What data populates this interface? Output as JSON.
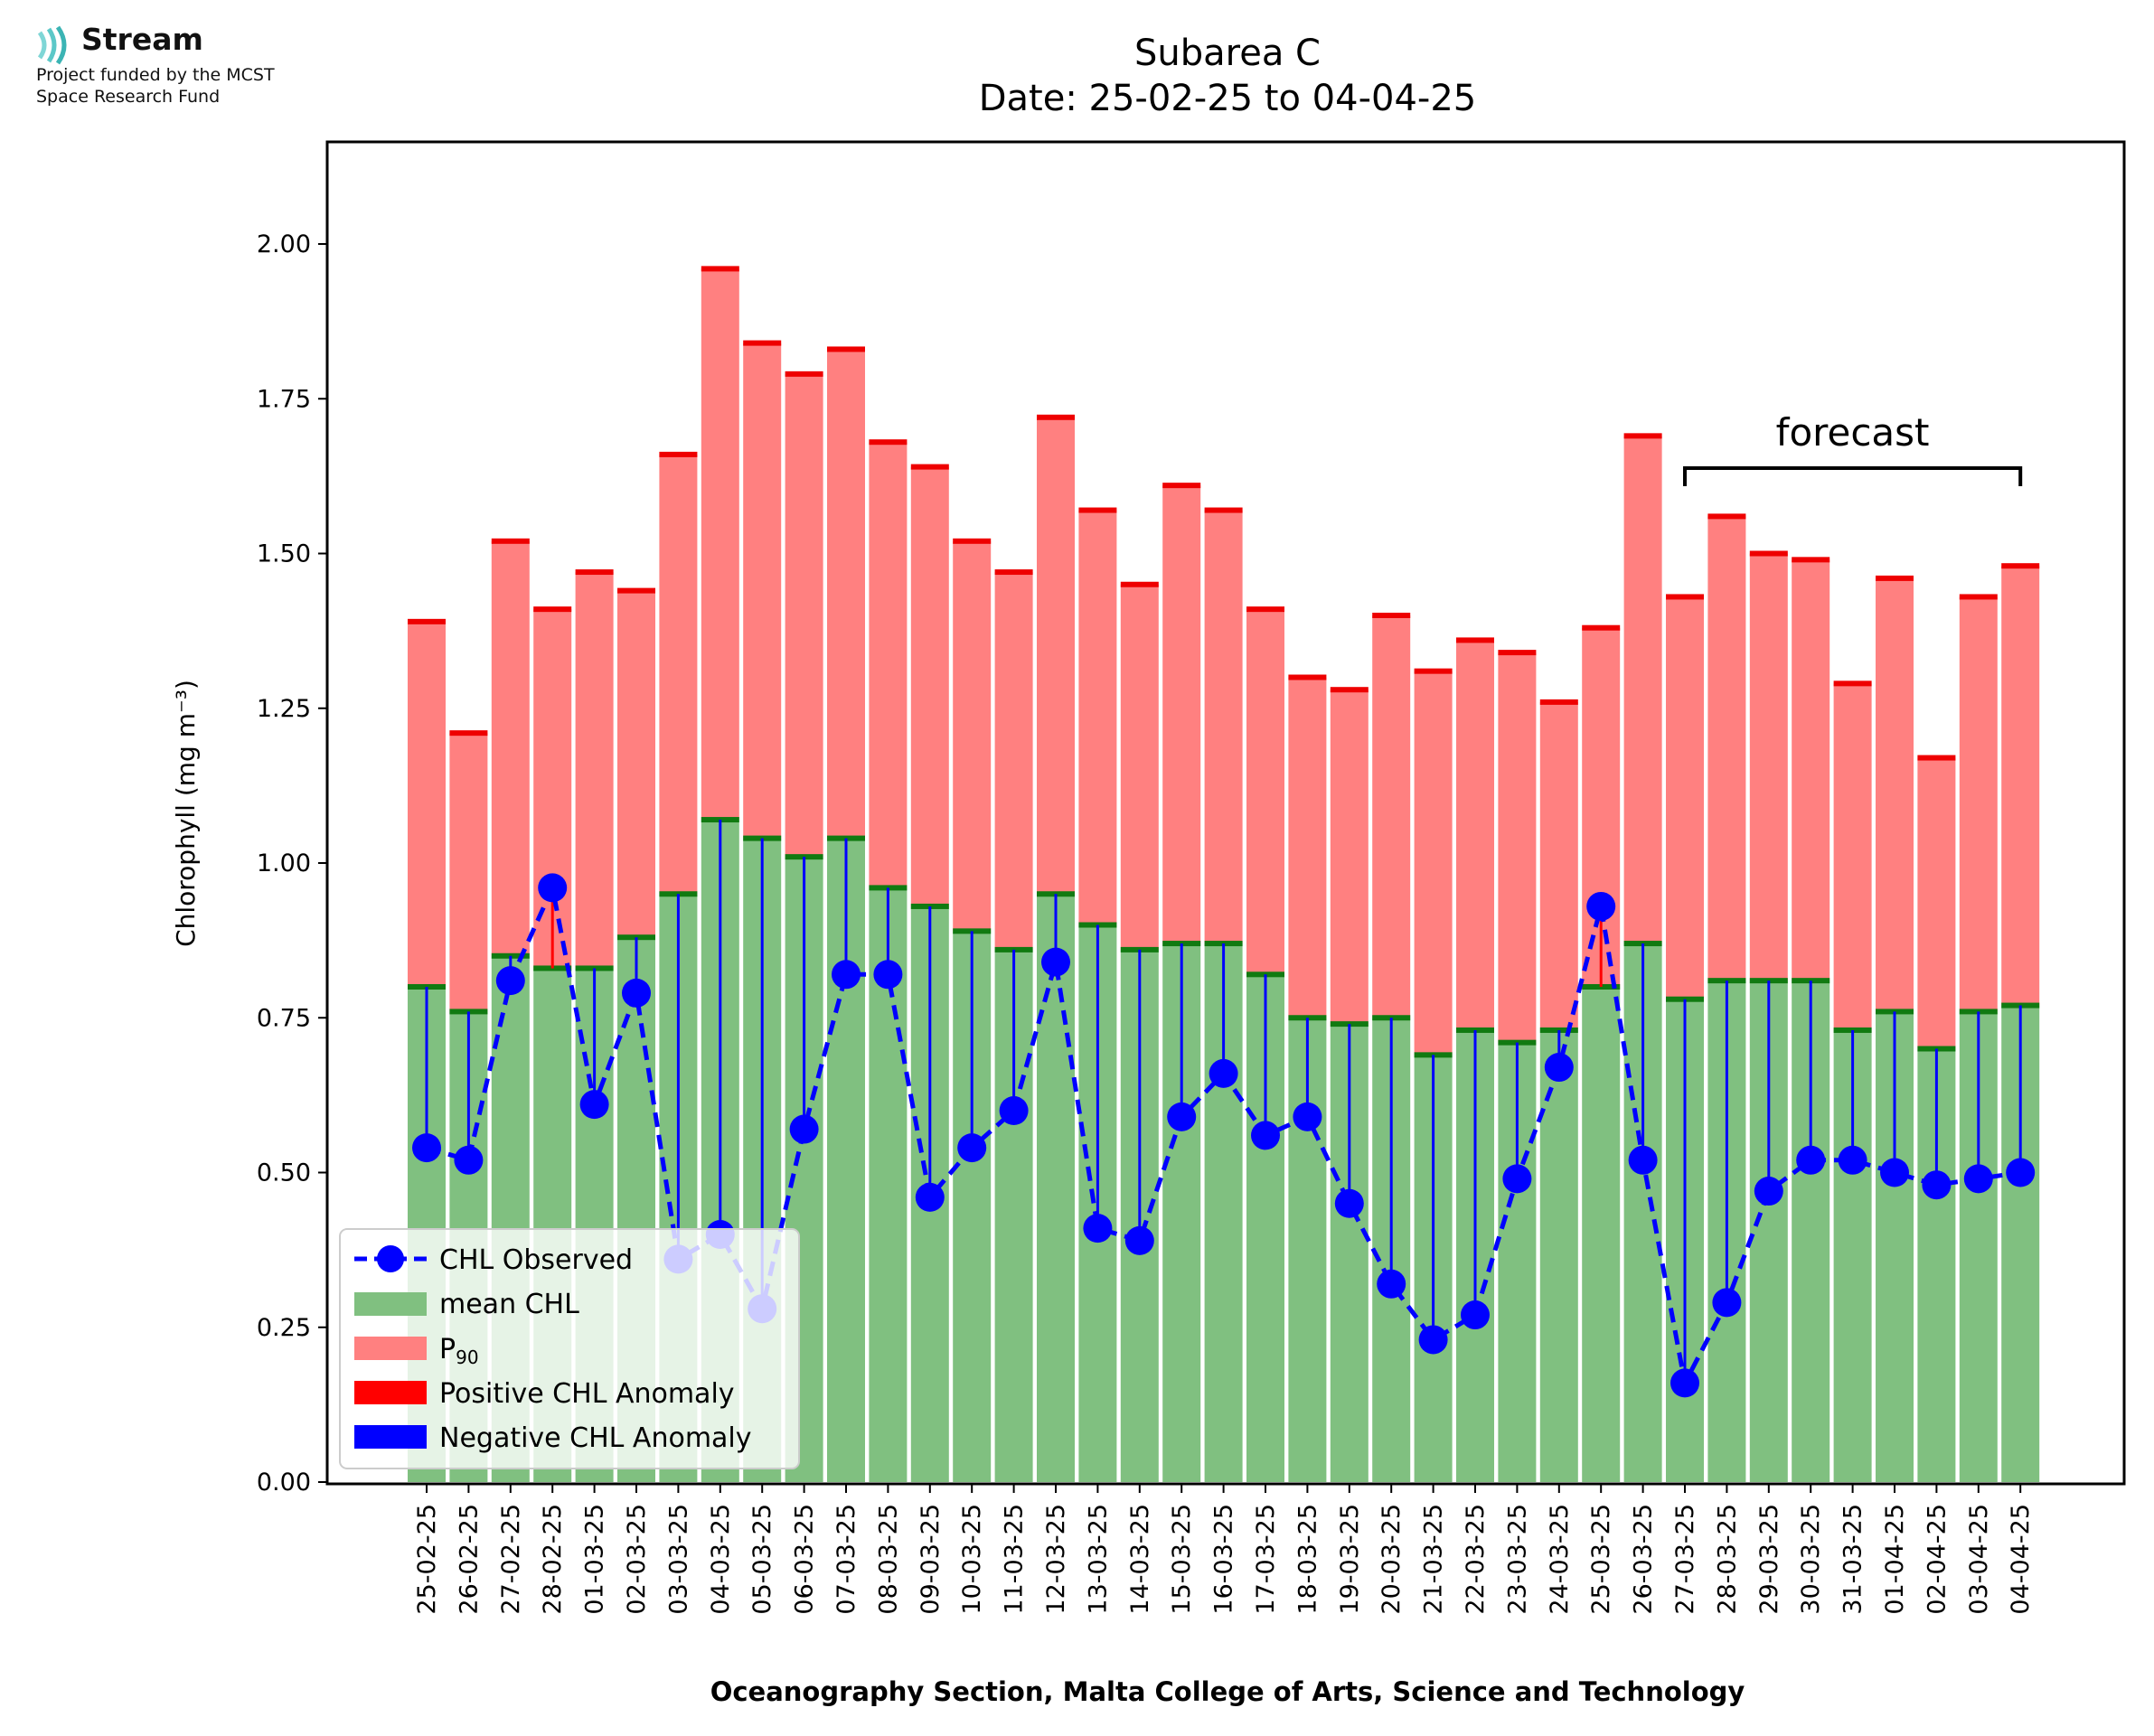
{
  "logo": {
    "brand": "Stream",
    "line1": "Project funded by the MCST",
    "line2": "Space Research Fund",
    "icon": "stream-waves-icon"
  },
  "chart_data": {
    "type": "bar",
    "title": "Subarea C",
    "subtitle": "Date: 25-02-25 to 04-04-25",
    "ylabel": "Chlorophyll (mg m⁻³)",
    "xlabel": "Oceanography Section, Malta College of Arts, Science and Technology",
    "ylim": [
      0,
      2.17
    ],
    "yticks": [
      "0.00",
      "0.25",
      "0.50",
      "0.75",
      "1.00",
      "1.25",
      "1.50",
      "1.75",
      "2.00"
    ],
    "grid": false,
    "legend_position": "lower-left",
    "annotation": "forecast",
    "forecast_range": [
      "27-03-25",
      "04-04-25"
    ],
    "categories": [
      "25-02-25",
      "26-02-25",
      "27-02-25",
      "28-02-25",
      "01-03-25",
      "02-03-25",
      "03-03-25",
      "04-03-25",
      "05-03-25",
      "06-03-25",
      "07-03-25",
      "08-03-25",
      "09-03-25",
      "10-03-25",
      "11-03-25",
      "12-03-25",
      "13-03-25",
      "14-03-25",
      "15-03-25",
      "16-03-25",
      "17-03-25",
      "18-03-25",
      "19-03-25",
      "20-03-25",
      "21-03-25",
      "22-03-25",
      "23-03-25",
      "24-03-25",
      "25-03-25",
      "26-03-25",
      "27-03-25",
      "28-03-25",
      "29-03-25",
      "30-03-25",
      "31-03-25",
      "01-04-25",
      "02-04-25",
      "03-04-25",
      "04-04-25"
    ],
    "series": [
      {
        "name": "mean CHL",
        "color": "#80c080",
        "values": [
          0.8,
          0.76,
          0.85,
          0.83,
          0.83,
          0.88,
          0.95,
          1.07,
          1.04,
          1.01,
          1.04,
          0.96,
          0.93,
          0.89,
          0.86,
          0.95,
          0.9,
          0.86,
          0.87,
          0.87,
          0.82,
          0.75,
          0.74,
          0.75,
          0.69,
          0.73,
          0.71,
          0.73,
          0.8,
          0.87,
          0.78,
          0.81,
          0.81,
          0.81,
          0.73,
          0.76,
          0.7,
          0.76,
          0.77
        ]
      },
      {
        "name": "P₉₀",
        "color": "#ff8080",
        "values": [
          1.39,
          1.21,
          1.52,
          1.41,
          1.47,
          1.44,
          1.66,
          1.96,
          1.84,
          1.79,
          1.83,
          1.68,
          1.64,
          1.52,
          1.47,
          1.72,
          1.57,
          1.45,
          1.61,
          1.57,
          1.41,
          1.3,
          1.28,
          1.4,
          1.31,
          1.36,
          1.34,
          1.26,
          1.38,
          1.69,
          1.43,
          1.56,
          1.5,
          1.49,
          1.29,
          1.46,
          1.17,
          1.43,
          1.48
        ]
      },
      {
        "name": "CHL Observed",
        "color": "#0000ff",
        "values": [
          0.54,
          0.52,
          0.81,
          0.96,
          0.61,
          0.79,
          0.36,
          0.4,
          0.28,
          0.57,
          0.82,
          0.82,
          0.46,
          0.54,
          0.6,
          0.84,
          0.41,
          0.39,
          0.59,
          0.66,
          0.56,
          0.59,
          0.45,
          0.32,
          0.23,
          0.27,
          0.49,
          0.67,
          0.93,
          0.52,
          0.16,
          0.29,
          0.47,
          0.52,
          0.52,
          0.5,
          0.48,
          0.49,
          0.5
        ]
      }
    ],
    "legend": {
      "observed": "CHL Observed",
      "mean": "mean CHL",
      "p90_base": "P",
      "p90_sub": "90",
      "positive": "Positive CHL Anomaly",
      "negative": "Negative CHL Anomaly"
    },
    "colors": {
      "mean": "#80c080",
      "mean_cap": "#117a11",
      "p90": "#ff8080",
      "p90_cap": "#ee0000",
      "positive": "#ff0000",
      "negative": "#0000ff",
      "observed": "#0000ff"
    }
  }
}
